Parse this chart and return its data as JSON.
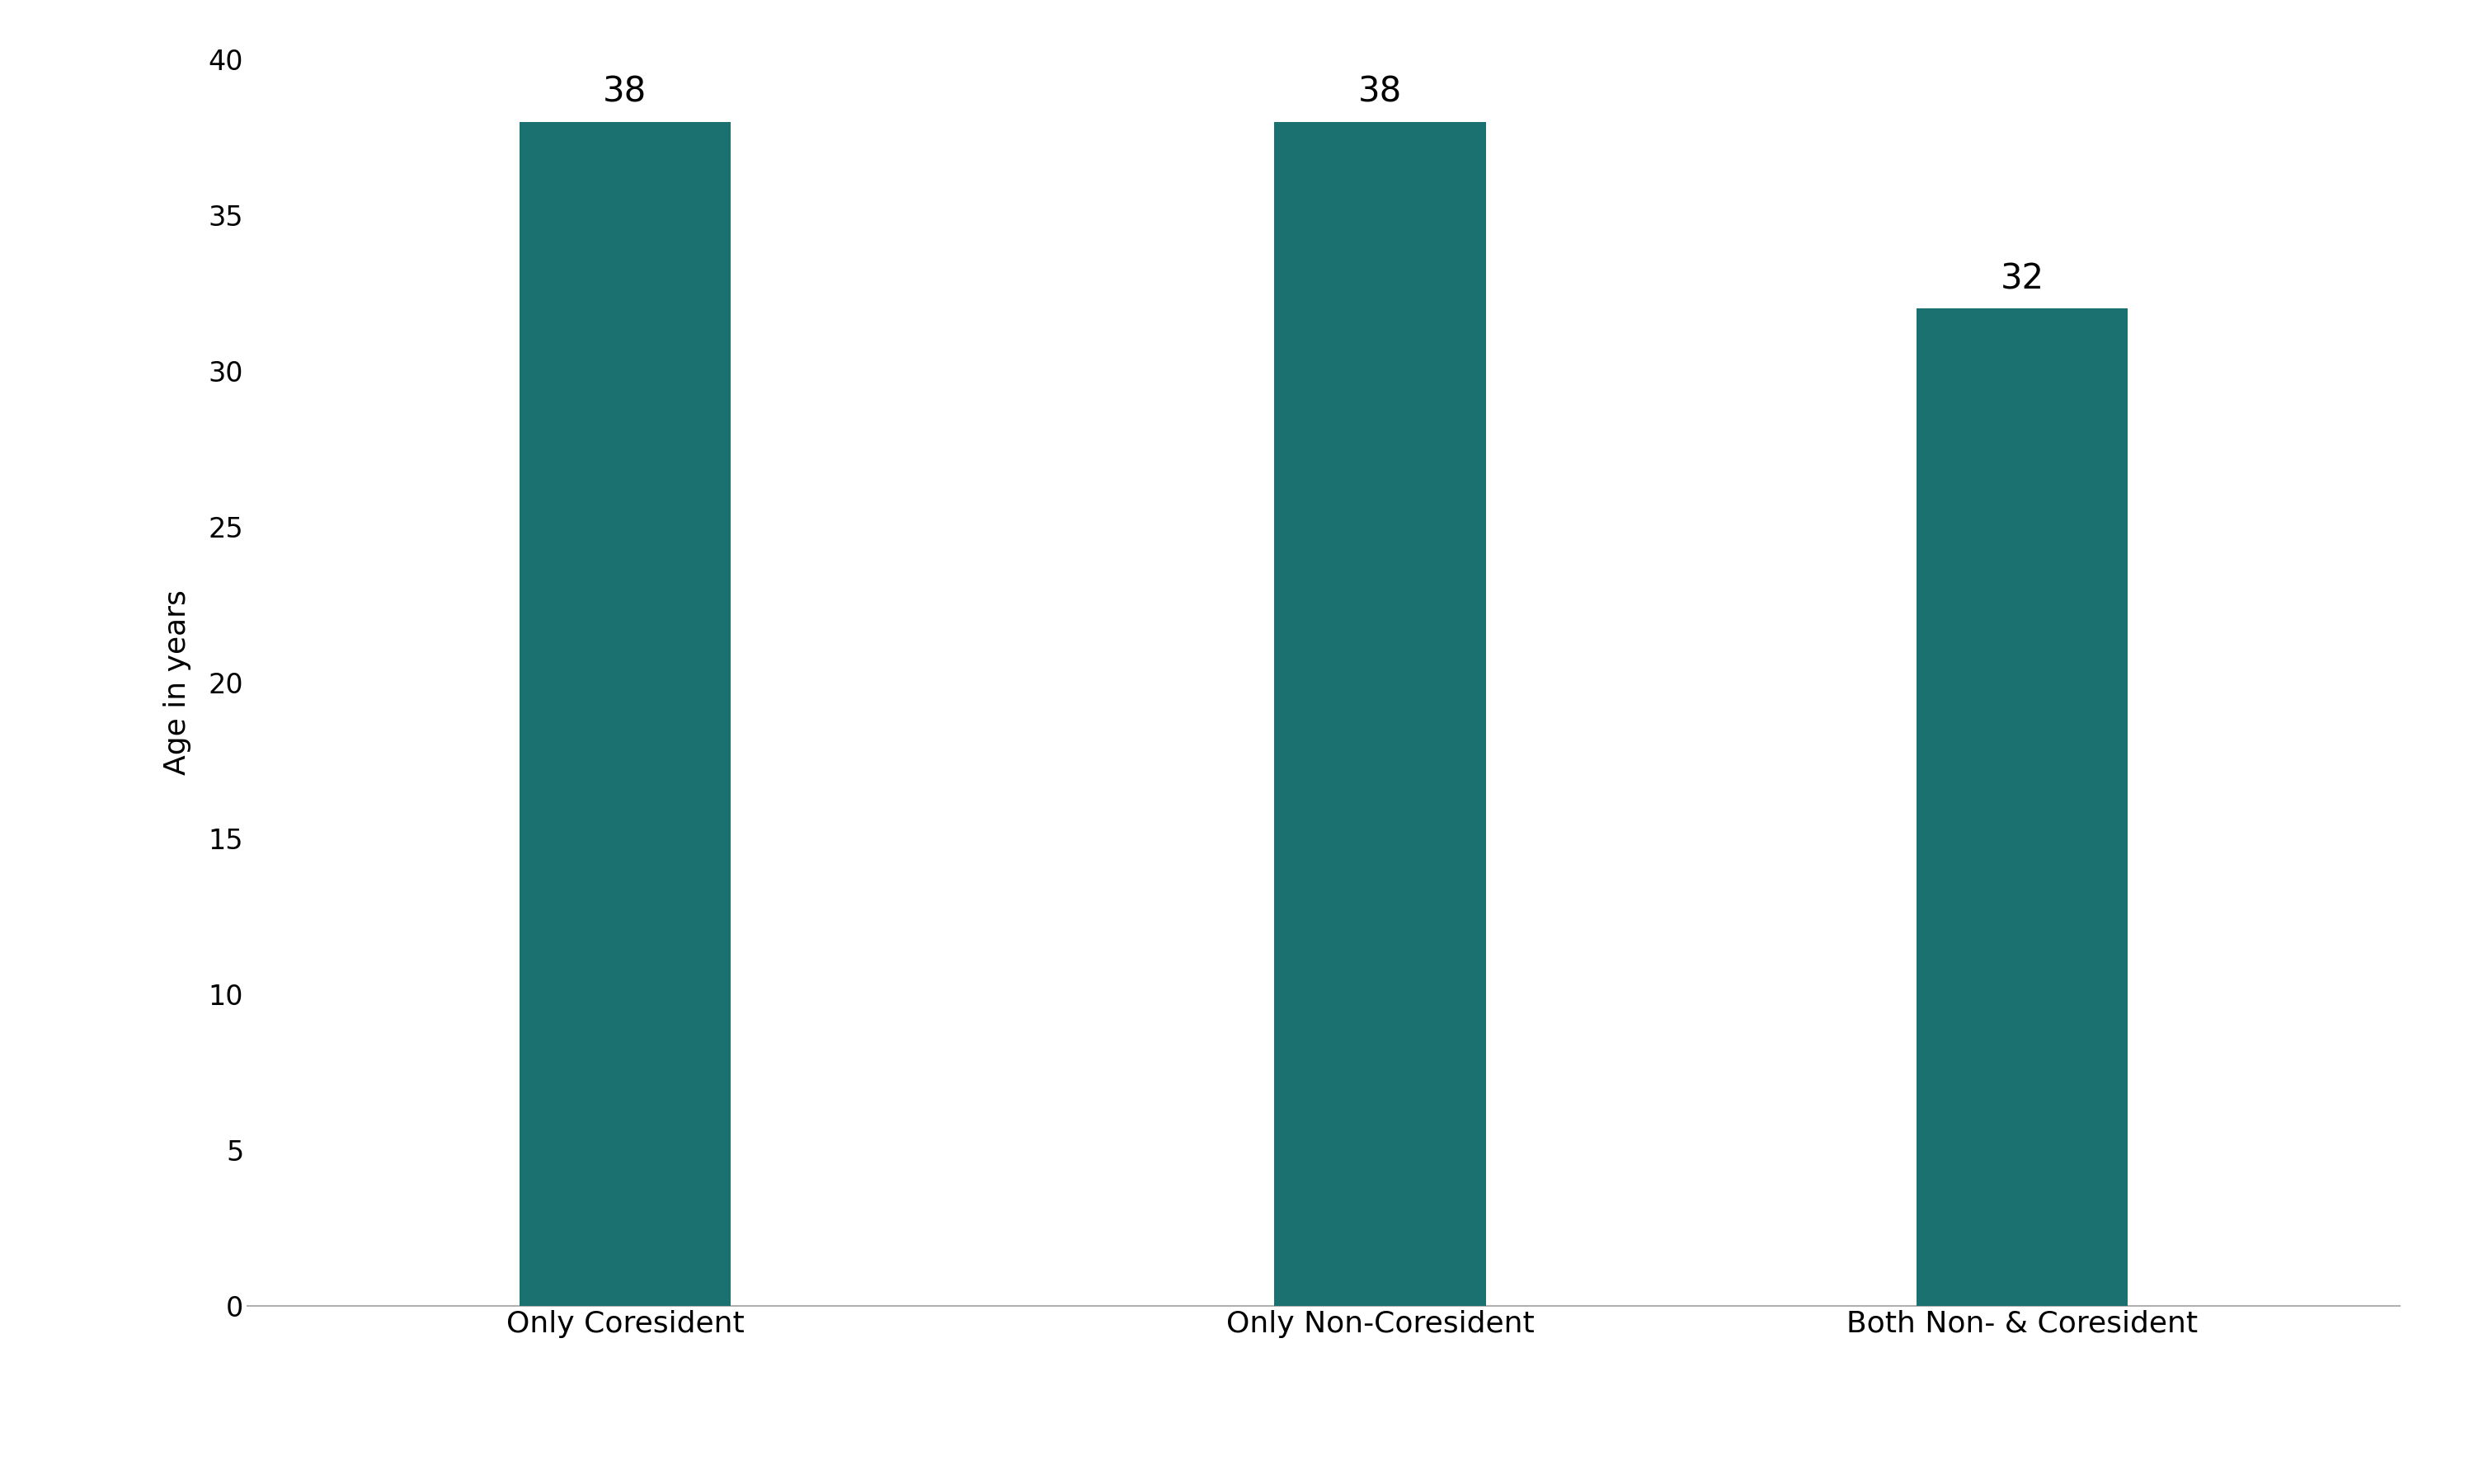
{
  "categories": [
    "Only Coresident",
    "Only Non-Coresident",
    "Both Non- & Coresident"
  ],
  "values": [
    38,
    38,
    32
  ],
  "bar_color": "#1b7070",
  "ylabel": "Age in years",
  "ylim": [
    0,
    40
  ],
  "yticks": [
    0,
    5,
    10,
    15,
    20,
    25,
    30,
    35,
    40
  ],
  "bar_width": 0.28,
  "label_fontsize": 26,
  "tick_fontsize": 24,
  "ylabel_fontsize": 26,
  "value_label_fontsize": 30,
  "background_color": "#ffffff",
  "spine_color": "#b0b0b0"
}
